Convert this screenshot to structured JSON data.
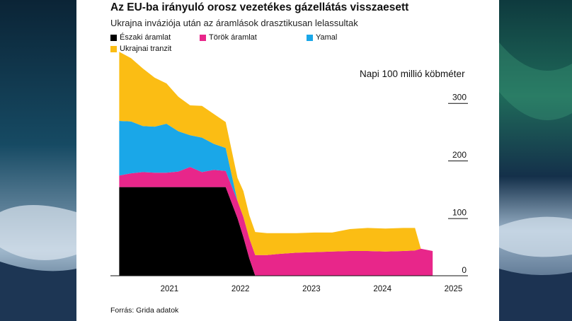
{
  "title": "Az EU-ba irányuló orosz vezetékes gázellátás visszaesett",
  "subtitle": "Ukrajna inváziója után az áramlások drasztikusan lelassultak",
  "source": "Forrás: Grida adatok",
  "unit_label": "Napi 100 millió köbméter",
  "colors": {
    "eszaki": "#000000",
    "torok": "#e8268a",
    "yamal": "#1aa7e8",
    "ukrajnai": "#fbbd14"
  },
  "chart_data": {
    "type": "area",
    "stacked": true,
    "title": "Az EU-ba irányuló orosz vezetékes gázellátás visszaesett",
    "subtitle": "Ukrajna inváziója után az áramlások drasztikusan lelassultak",
    "ylabel": "Napi 100 millió köbméter",
    "ylim": [
      0,
      350
    ],
    "yticks": [
      0,
      100,
      200,
      300
    ],
    "xlim": [
      "2020-09-01",
      "2025-08-01"
    ],
    "xticks": [
      "2021",
      "2022",
      "2023",
      "2024",
      "2025"
    ],
    "legend_position": "top-left",
    "grid": false,
    "x": [
      "2020-10",
      "2020-12",
      "2021-02",
      "2021-04",
      "2021-06",
      "2021-08",
      "2021-10",
      "2021-12",
      "2022-02",
      "2022-04",
      "2022-06",
      "2022-07",
      "2022-08",
      "2022-09",
      "2022-11",
      "2023-01",
      "2023-04",
      "2023-07",
      "2023-10",
      "2024-01",
      "2024-04",
      "2024-07",
      "2024-10",
      "2024-12",
      "2025-01",
      "2025-03"
    ],
    "series": [
      {
        "name": "Északi áramlat",
        "values": [
          154,
          154,
          154,
          154,
          154,
          154,
          154,
          154,
          154,
          154,
          100,
          67,
          30,
          0,
          0,
          0,
          0,
          0,
          0,
          0,
          0,
          0,
          0,
          0,
          0,
          0
        ]
      },
      {
        "name": "Török áramlat",
        "values": [
          20,
          24,
          26,
          25,
          25,
          27,
          35,
          26,
          30,
          28,
          30,
          35,
          35,
          36,
          36,
          38,
          40,
          41,
          42,
          43,
          43,
          42,
          43,
          44,
          47,
          43
        ]
      },
      {
        "name": "Yamal",
        "values": [
          95,
          90,
          80,
          80,
          85,
          70,
          55,
          60,
          45,
          40,
          0,
          0,
          0,
          0,
          0,
          0,
          0,
          0,
          0,
          0,
          0,
          0,
          0,
          0,
          0,
          0
        ]
      },
      {
        "name": "Ukrajnai tranzit",
        "values": [
          120,
          110,
          100,
          85,
          70,
          60,
          52,
          55,
          52,
          45,
          40,
          45,
          40,
          40,
          38,
          36,
          34,
          34,
          33,
          38,
          40,
          40,
          40,
          39,
          0,
          0
        ]
      }
    ]
  }
}
